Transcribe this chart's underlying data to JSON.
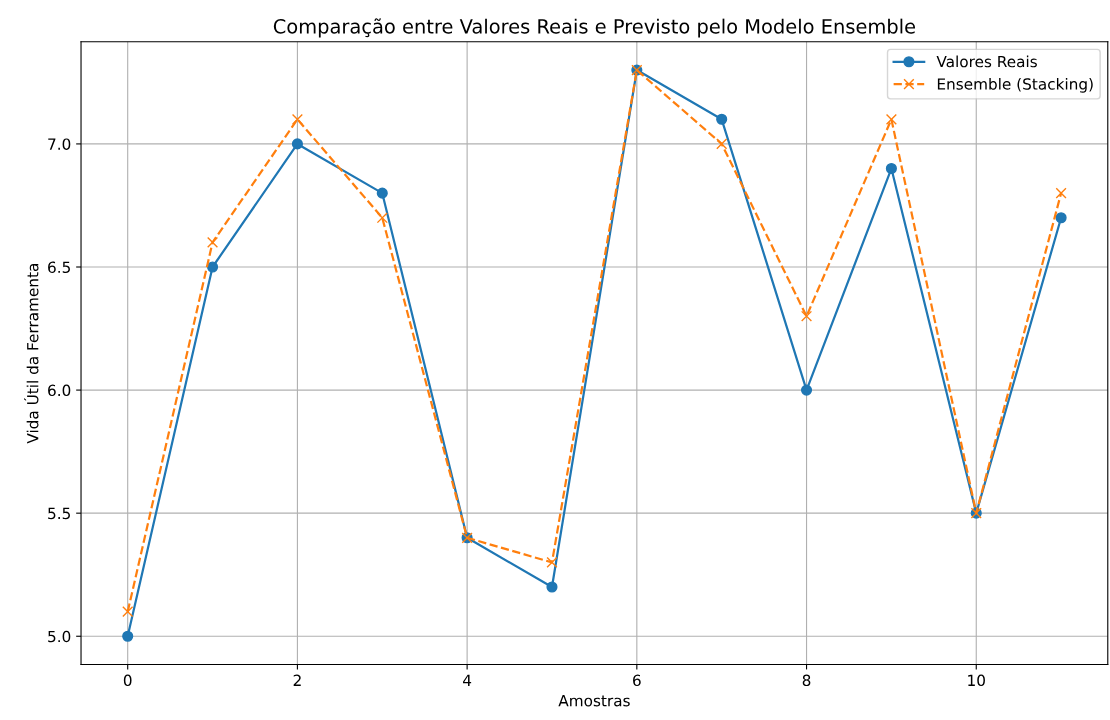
{
  "chart_data": {
    "type": "line",
    "title": "Comparação entre Valores Reais e Previsto pelo Modelo Ensemble",
    "xlabel": "Amostras",
    "ylabel": "Vida Útil da Ferramenta",
    "x": [
      0,
      1,
      2,
      3,
      4,
      5,
      6,
      7,
      8,
      9,
      10,
      11
    ],
    "series": [
      {
        "name": "Valores Reais",
        "color": "#1f77b4",
        "marker": "circle",
        "line_style": "solid",
        "values": [
          5.0,
          6.5,
          7.0,
          6.8,
          5.4,
          5.2,
          7.3,
          7.1,
          6.0,
          6.9,
          5.5,
          6.7
        ]
      },
      {
        "name": "Ensemble (Stacking)",
        "color": "#ff7f0e",
        "marker": "cross",
        "line_style": "dashed",
        "values": [
          5.1,
          6.6,
          7.1,
          6.7,
          5.4,
          5.3,
          7.3,
          7.0,
          6.3,
          7.1,
          5.5,
          6.8
        ]
      }
    ],
    "xlim": [
      -0.55,
      11.55
    ],
    "xticks": [
      0,
      2,
      4,
      6,
      8,
      10
    ],
    "ylim": [
      4.885,
      7.415
    ],
    "yticks": [
      {
        "value": 5,
        "label": "5.0"
      },
      {
        "value": 5.5,
        "label": "5.5"
      },
      {
        "value": 6,
        "label": "6.0"
      },
      {
        "value": 6.5,
        "label": "6.5"
      },
      {
        "value": 7,
        "label": "7.0"
      }
    ],
    "grid": true,
    "legend": "top right"
  }
}
